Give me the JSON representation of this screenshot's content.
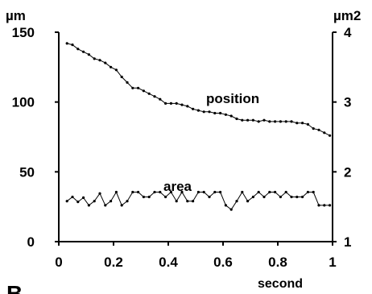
{
  "chart_data": {
    "type": "line",
    "x_label": "second",
    "left_unit": "µm",
    "right_unit": "µm2",
    "panel_letter": "B",
    "xlim": [
      0,
      1
    ],
    "ylim_left": [
      0,
      150
    ],
    "ylim_right": [
      1,
      4
    ],
    "x_ticks": [
      "0",
      "0.2",
      "0.4",
      "0.6",
      "0.8",
      "1"
    ],
    "left_ticks": [
      "150",
      "100",
      "50",
      "0"
    ],
    "right_ticks": [
      "4",
      "3",
      "2",
      "1"
    ],
    "grid": false,
    "series": [
      {
        "name": "position",
        "axis": "left",
        "x": [
          0.03,
          0.05,
          0.07,
          0.09,
          0.11,
          0.13,
          0.15,
          0.17,
          0.19,
          0.21,
          0.23,
          0.25,
          0.27,
          0.29,
          0.31,
          0.33,
          0.35,
          0.37,
          0.39,
          0.41,
          0.43,
          0.45,
          0.47,
          0.49,
          0.51,
          0.53,
          0.55,
          0.57,
          0.59,
          0.61,
          0.63,
          0.65,
          0.67,
          0.69,
          0.71,
          0.73,
          0.75,
          0.77,
          0.79,
          0.81,
          0.83,
          0.85,
          0.87,
          0.89,
          0.91,
          0.93,
          0.95,
          0.97,
          0.99
        ],
        "values": [
          142,
          141,
          138,
          136,
          134,
          131,
          130,
          128,
          125,
          123,
          118,
          114,
          110,
          110,
          108,
          106,
          104,
          102,
          99,
          99,
          99,
          98,
          97,
          95,
          94,
          93,
          93,
          92,
          92,
          91,
          90,
          88,
          87,
          87,
          87,
          86,
          87,
          86,
          86,
          86,
          86,
          86,
          85,
          85,
          84,
          81,
          80,
          78,
          76
        ]
      },
      {
        "name": "area",
        "axis": "right",
        "x": [
          0.03,
          0.05,
          0.07,
          0.09,
          0.11,
          0.13,
          0.15,
          0.17,
          0.19,
          0.21,
          0.23,
          0.25,
          0.27,
          0.29,
          0.31,
          0.33,
          0.35,
          0.37,
          0.39,
          0.41,
          0.43,
          0.45,
          0.47,
          0.49,
          0.51,
          0.53,
          0.55,
          0.57,
          0.59,
          0.61,
          0.63,
          0.65,
          0.67,
          0.69,
          0.71,
          0.73,
          0.75,
          0.77,
          0.79,
          0.81,
          0.83,
          0.85,
          0.87,
          0.89,
          0.91,
          0.93,
          0.95,
          0.97,
          0.99
        ],
        "values": [
          1.58,
          1.64,
          1.57,
          1.63,
          1.52,
          1.58,
          1.69,
          1.52,
          1.58,
          1.71,
          1.52,
          1.58,
          1.71,
          1.71,
          1.64,
          1.64,
          1.71,
          1.71,
          1.64,
          1.71,
          1.58,
          1.71,
          1.58,
          1.58,
          1.71,
          1.71,
          1.64,
          1.71,
          1.71,
          1.52,
          1.46,
          1.58,
          1.71,
          1.58,
          1.64,
          1.71,
          1.64,
          1.71,
          1.71,
          1.64,
          1.71,
          1.64,
          1.64,
          1.64,
          1.71,
          1.71,
          1.52,
          1.52,
          1.52
        ]
      }
    ]
  }
}
